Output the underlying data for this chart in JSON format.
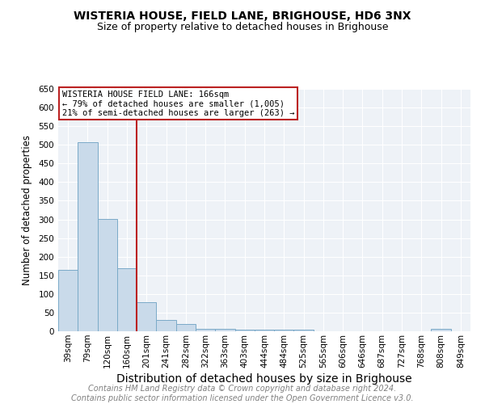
{
  "title": "WISTERIA HOUSE, FIELD LANE, BRIGHOUSE, HD6 3NX",
  "subtitle": "Size of property relative to detached houses in Brighouse",
  "xlabel": "Distribution of detached houses by size in Brighouse",
  "ylabel": "Number of detached properties",
  "categories": [
    "39sqm",
    "79sqm",
    "120sqm",
    "160sqm",
    "201sqm",
    "241sqm",
    "282sqm",
    "322sqm",
    "363sqm",
    "403sqm",
    "444sqm",
    "484sqm",
    "525sqm",
    "565sqm",
    "606sqm",
    "646sqm",
    "687sqm",
    "727sqm",
    "768sqm",
    "808sqm",
    "849sqm"
  ],
  "values": [
    165,
    507,
    302,
    168,
    77,
    31,
    20,
    7,
    6,
    5,
    5,
    5,
    5,
    0,
    0,
    0,
    0,
    0,
    0,
    6,
    0
  ],
  "bar_color": "#c9daea",
  "bar_edge_color": "#7aaac8",
  "vline_color": "#bb2222",
  "annotation_text": "WISTERIA HOUSE FIELD LANE: 166sqm\n← 79% of detached houses are smaller (1,005)\n21% of semi-detached houses are larger (263) →",
  "annotation_box_color": "white",
  "annotation_box_edge_color": "#bb2222",
  "ylim": [
    0,
    650
  ],
  "yticks": [
    0,
    50,
    100,
    150,
    200,
    250,
    300,
    350,
    400,
    450,
    500,
    550,
    600,
    650
  ],
  "background_color": "#eef2f7",
  "title_fontsize": 10,
  "subtitle_fontsize": 9,
  "xlabel_fontsize": 10,
  "ylabel_fontsize": 8.5,
  "tick_fontsize": 7.5,
  "annotation_fontsize": 7.5,
  "footer_fontsize": 7,
  "footer_line1": "Contains HM Land Registry data © Crown copyright and database right 2024.",
  "footer_line2": "Contains public sector information licensed under the Open Government Licence v3.0.",
  "vline_index": 3.5
}
